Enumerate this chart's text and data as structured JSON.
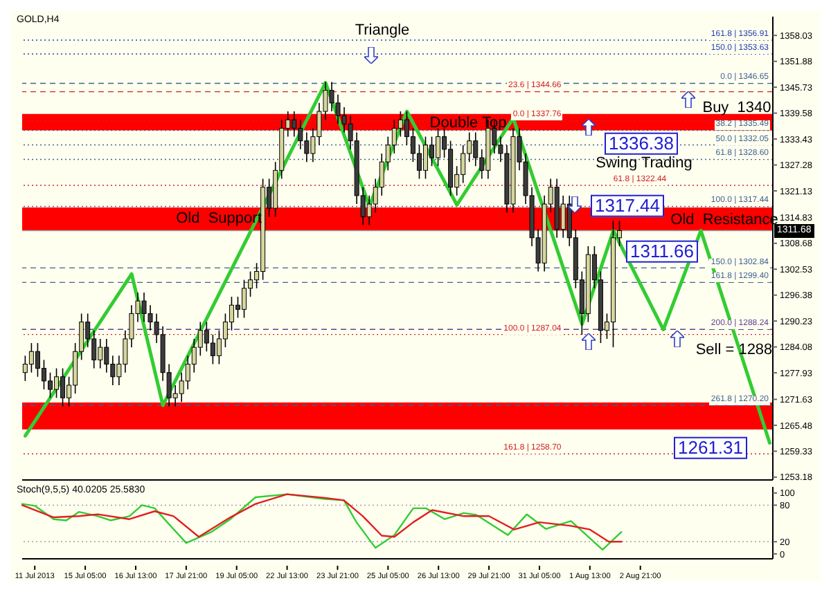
{
  "chart_data": [
    {
      "type": "candlestick",
      "title": "GOLD,H4",
      "categories": [
        null,
        null,
        null,
        null,
        null,
        null,
        null,
        null,
        null,
        null,
        null,
        null,
        null,
        null,
        null,
        null,
        null,
        null,
        null,
        null,
        null,
        null,
        null,
        null,
        null,
        null,
        null,
        null,
        null,
        null,
        null,
        null,
        null,
        null,
        null,
        null,
        null,
        null,
        null,
        null,
        null,
        null,
        null,
        null,
        null,
        null,
        null,
        null,
        null,
        null,
        null,
        null,
        null,
        null,
        null,
        null,
        null,
        null,
        null,
        null,
        null,
        null,
        null,
        null,
        null,
        null,
        null,
        null,
        null,
        null,
        null,
        null,
        null,
        null,
        null,
        null,
        null,
        null,
        null,
        null,
        null,
        null,
        null,
        null,
        null,
        null,
        null,
        null,
        null,
        null,
        null,
        null,
        null,
        null,
        null,
        null,
        null,
        null,
        null,
        null,
        null,
        null,
        null,
        null,
        null,
        null,
        null,
        null,
        null,
        null,
        null,
        null,
        null,
        null,
        null,
        null,
        null,
        null,
        null,
        null
      ],
      "ohlc": [
        [
          1278,
          1282,
          1276,
          1280
        ],
        [
          1280,
          1285,
          1278,
          1283
        ],
        [
          1283,
          1285,
          1277,
          1279
        ],
        [
          1279,
          1281,
          1274,
          1276
        ],
        [
          1276,
          1278,
          1272,
          1274
        ],
        [
          1274,
          1279,
          1272,
          1277
        ],
        [
          1277,
          1279,
          1270,
          1272
        ],
        [
          1272,
          1277,
          1270,
          1275
        ],
        [
          1275,
          1285,
          1273,
          1283
        ],
        [
          1283,
          1292,
          1281,
          1290
        ],
        [
          1290,
          1292,
          1284,
          1286
        ],
        [
          1286,
          1288,
          1279,
          1281
        ],
        [
          1281,
          1286,
          1279,
          1284
        ],
        [
          1284,
          1286,
          1278,
          1280
        ],
        [
          1280,
          1282,
          1275,
          1277
        ],
        [
          1277,
          1282,
          1275,
          1280
        ],
        [
          1280,
          1288,
          1278,
          1286
        ],
        [
          1286,
          1294,
          1284,
          1292
        ],
        [
          1292,
          1297,
          1290,
          1295
        ],
        [
          1295,
          1297,
          1290,
          1292
        ],
        [
          1292,
          1294,
          1288,
          1290
        ],
        [
          1290,
          1292,
          1285,
          1287
        ],
        [
          1287,
          1289,
          1276,
          1278
        ],
        [
          1278,
          1280,
          1270,
          1272
        ],
        [
          1272,
          1275,
          1270,
          1273
        ],
        [
          1273,
          1278,
          1271,
          1276
        ],
        [
          1276,
          1282,
          1274,
          1280
        ],
        [
          1280,
          1286,
          1278,
          1284
        ],
        [
          1284,
          1290,
          1282,
          1288
        ],
        [
          1288,
          1290,
          1283,
          1285
        ],
        [
          1285,
          1287,
          1280,
          1282
        ],
        [
          1282,
          1288,
          1280,
          1286
        ],
        [
          1286,
          1292,
          1284,
          1290
        ],
        [
          1290,
          1296,
          1288,
          1294
        ],
        [
          1294,
          1296,
          1291,
          1293
        ],
        [
          1293,
          1300,
          1291,
          1298
        ],
        [
          1298,
          1302,
          1296,
          1300
        ],
        [
          1300,
          1304,
          1298,
          1302
        ],
        [
          1302,
          1324,
          1300,
          1322
        ],
        [
          1322,
          1324,
          1315,
          1317
        ],
        [
          1317,
          1328,
          1315,
          1326
        ],
        [
          1326,
          1338,
          1324,
          1336
        ],
        [
          1336,
          1340,
          1334,
          1338
        ],
        [
          1338,
          1340,
          1334,
          1336
        ],
        [
          1336,
          1338,
          1331,
          1333
        ],
        [
          1333,
          1335,
          1328,
          1330
        ],
        [
          1330,
          1336,
          1328,
          1334
        ],
        [
          1334,
          1342,
          1332,
          1340
        ],
        [
          1340,
          1347,
          1338,
          1345
        ],
        [
          1345,
          1347,
          1340,
          1342
        ],
        [
          1342,
          1344,
          1337,
          1339
        ],
        [
          1339,
          1341,
          1335,
          1337
        ],
        [
          1337,
          1339,
          1331,
          1333
        ],
        [
          1333,
          1335,
          1318,
          1320
        ],
        [
          1320,
          1322,
          1313,
          1315
        ],
        [
          1315,
          1320,
          1313,
          1318
        ],
        [
          1318,
          1324,
          1316,
          1322
        ],
        [
          1322,
          1330,
          1320,
          1328
        ],
        [
          1328,
          1334,
          1326,
          1332
        ],
        [
          1332,
          1338,
          1330,
          1336
        ],
        [
          1336,
          1340,
          1334,
          1338
        ],
        [
          1338,
          1340,
          1332,
          1334
        ],
        [
          1334,
          1336,
          1328,
          1330
        ],
        [
          1330,
          1332,
          1324,
          1326
        ],
        [
          1326,
          1334,
          1324,
          1332
        ],
        [
          1332,
          1334,
          1327,
          1329
        ],
        [
          1329,
          1336,
          1327,
          1334
        ],
        [
          1334,
          1336,
          1329,
          1331
        ],
        [
          1331,
          1333,
          1320,
          1322
        ],
        [
          1322,
          1327,
          1320,
          1325
        ],
        [
          1325,
          1332,
          1323,
          1330
        ],
        [
          1330,
          1335,
          1328,
          1333
        ],
        [
          1333,
          1335,
          1327,
          1329
        ],
        [
          1329,
          1331,
          1324,
          1326
        ],
        [
          1326,
          1338,
          1324,
          1336
        ],
        [
          1336,
          1338,
          1330,
          1332
        ],
        [
          1332,
          1334,
          1328,
          1330
        ],
        [
          1330,
          1332,
          1316,
          1318
        ],
        [
          1318,
          1336,
          1316,
          1334
        ],
        [
          1334,
          1336,
          1326,
          1328
        ],
        [
          1328,
          1330,
          1318,
          1320
        ],
        [
          1320,
          1322,
          1308,
          1310
        ],
        [
          1310,
          1312,
          1302,
          1304
        ],
        [
          1304,
          1320,
          1302,
          1318
        ],
        [
          1318,
          1324,
          1316,
          1322
        ],
        [
          1322,
          1324,
          1310,
          1312
        ],
        [
          1312,
          1320,
          1310,
          1318
        ],
        [
          1318,
          1320,
          1308,
          1310
        ],
        [
          1310,
          1312,
          1298,
          1300
        ],
        [
          1300,
          1302,
          1287,
          1292
        ],
        [
          1292,
          1308,
          1290,
          1306
        ],
        [
          1306,
          1308,
          1298,
          1300
        ],
        [
          1300,
          1302,
          1285,
          1288
        ],
        [
          1288,
          1292,
          1286,
          1290
        ],
        [
          1290,
          1314,
          1284,
          1310
        ],
        [
          1310,
          1314,
          1308,
          1311.7
        ],
        null,
        null,
        null,
        null,
        null,
        null,
        null,
        null,
        null,
        null,
        null,
        null,
        null,
        null,
        null,
        null,
        null,
        null,
        null,
        null,
        null,
        null,
        null,
        null
      ],
      "series": [
        {
          "type": "line",
          "color": "#33cc33",
          "values": [
            1263,
            null,
            null,
            null,
            null,
            null,
            null,
            null,
            null,
            null,
            null,
            null,
            null,
            null,
            null,
            null,
            null,
            1301.4,
            null,
            null,
            null,
            null,
            1270.2,
            null,
            null,
            null,
            null,
            null,
            null,
            null,
            null,
            null,
            null,
            null,
            null,
            null,
            null,
            null,
            null,
            null,
            null,
            null,
            null,
            null,
            null,
            null,
            null,
            null,
            1346.8,
            null,
            null,
            null,
            null,
            null,
            null,
            1317.5,
            null,
            null,
            null,
            null,
            null,
            1340,
            null,
            null,
            null,
            null,
            null,
            null,
            null,
            1317.8,
            null,
            null,
            null,
            null,
            null,
            null,
            null,
            null,
            1338.4,
            null,
            null,
            null,
            null,
            null,
            null,
            null,
            null,
            null,
            null,
            1289.5,
            null,
            null,
            null,
            null,
            1311.7,
            null,
            null,
            null,
            null,
            null,
            null,
            null,
            1288.2,
            null,
            null,
            null,
            null,
            null,
            1311.7,
            null,
            null,
            null,
            null,
            null,
            null,
            null,
            null,
            null,
            null,
            1261.3
          ]
        }
      ],
      "tick_labels": "y",
      "ylim": [
        1252.5,
        1362.5
      ],
      "yticks": [
        1253.18,
        1259.33,
        1265.48,
        1271.63,
        1277.93,
        1284.08,
        1290.23,
        1296.38,
        1302.53,
        1308.68,
        1314.83,
        1321.13,
        1327.28,
        1333.43,
        1339.58,
        1345.73,
        1351.88,
        1358.03
      ],
      "bands": [
        {
          "axis": "y",
          "from": 1335.5,
          "to": 1339.4,
          "color": "#ff0000"
        },
        {
          "axis": "y",
          "from": 1311.7,
          "to": 1317.2,
          "color": "#ff0000"
        },
        {
          "axis": "y",
          "from": 1264.5,
          "to": 1270.9,
          "color": "#ff0000"
        }
      ],
      "ref_lines": [
        {
          "axis": "y",
          "value": 1311.68,
          "label": "1311.68",
          "color": "#a0a0a0",
          "line_style": "solid"
        },
        {
          "axis": "y",
          "value": 1356.91,
          "label": "161.8 | 1356.91",
          "color": "#2040b0",
          "line_style": "dotted"
        },
        {
          "axis": "y",
          "value": 1353.63,
          "label": "150.0 | 1353.63",
          "color": "#2040b0",
          "line_style": "dotted"
        },
        {
          "axis": "y",
          "value": 1346.65,
          "label": "0.0 | 1346.65",
          "color": "#406090",
          "line_style": "dashed"
        },
        {
          "axis": "y",
          "value": 1335.49,
          "label": "38.2 | 1335.49",
          "color": "#406090",
          "line_style": "dotted"
        },
        {
          "axis": "y",
          "value": 1332.05,
          "label": "50.0 | 1332.05",
          "color": "#406090",
          "line_style": "dotted"
        },
        {
          "axis": "y",
          "value": 1328.6,
          "label": "61.8 | 1328.60",
          "color": "#406090",
          "line_style": "dotted"
        },
        {
          "axis": "y",
          "value": 1317.44,
          "label": "100.0 | 1317.44",
          "color": "#406090",
          "line_style": "dotted"
        },
        {
          "axis": "y",
          "value": 1302.84,
          "label": "150.0 | 1302.84",
          "color": "#406090",
          "line_style": "dashed"
        },
        {
          "axis": "y",
          "value": 1299.4,
          "label": "161.8 | 1299.40",
          "color": "#406090",
          "line_style": "dashed"
        },
        {
          "axis": "y",
          "value": 1288.24,
          "label": "200.0 | 1288.24",
          "color": "#604090",
          "line_style": "dashed"
        },
        {
          "axis": "y",
          "value": 1270.2,
          "label": "261.8 | 1270.20",
          "color": "#406090",
          "line_style": "dashed"
        },
        {
          "axis": "y",
          "value": 1344.66,
          "label": "23.6 | 1344.66",
          "color": "#d02020",
          "line_style": "dashed"
        },
        {
          "axis": "y",
          "value": 1337.76,
          "label": "0.0 | 1337.76",
          "color": "#d02020",
          "line_style": "dotted"
        },
        {
          "axis": "y",
          "value": 1322.44,
          "label": "61.8 | 1322.44",
          "color": "#d02020",
          "line_style": "dotted"
        },
        {
          "axis": "y",
          "value": 1287.04,
          "label": "100.0 | 1287.04",
          "color": "#d02020",
          "line_style": "dotted"
        },
        {
          "axis": "y",
          "value": 1258.7,
          "label": "161.8 | 1258.70",
          "color": "#d02020",
          "line_style": "dotted"
        }
      ],
      "annotations": [
        "Triangle",
        {
          "text": "Double Top",
          "y": 1337.1
        },
        "Old  Support",
        "Swing Trading",
        "Old  Resistance",
        "Buy  1340",
        "1336.38",
        "1317.44",
        "1311.66",
        "Sell = 1288",
        "1261.31"
      ]
    },
    {
      "type": "line",
      "title": "Stoch(9,5,5) 40.0205 25.5830",
      "categories": [
        null,
        null,
        "11 Jul 2013",
        null,
        null,
        null,
        null,
        null,
        null,
        null,
        "15 Jul 05:00",
        null,
        null,
        null,
        null,
        null,
        null,
        null,
        "16 Jul 13:00",
        null,
        null,
        null,
        null,
        null,
        null,
        null,
        "17 Jul 21:00",
        null,
        null,
        null,
        null,
        null,
        null,
        null,
        "19 Jul 05:00",
        null,
        null,
        null,
        null,
        null,
        null,
        null,
        "22 Jul 13:00",
        null,
        null,
        null,
        null,
        null,
        null,
        null,
        "23 Jul 21:00",
        null,
        null,
        null,
        null,
        null,
        null,
        null,
        "25 Jul 05:00",
        null,
        null,
        null,
        null,
        null,
        null,
        null,
        "26 Jul 13:00",
        null,
        null,
        null,
        null,
        null,
        null,
        null,
        "29 Jul 21:00",
        null,
        null,
        null,
        null,
        null,
        null,
        null,
        "31 Jul 05:00",
        null,
        null,
        null,
        null,
        null,
        null,
        null,
        "1 Aug 13:00",
        null,
        null,
        null,
        null,
        null,
        null,
        null,
        "2 Aug 21:00",
        null,
        null,
        null,
        null,
        null,
        null,
        null,
        null,
        null,
        null,
        null,
        null,
        null,
        null,
        null,
        null,
        null,
        null,
        null,
        null,
        null
      ],
      "series": [
        {
          "color": "#33cc33",
          "values": [
            82,
            null,
            79,
            null,
            null,
            57,
            null,
            55,
            null,
            69,
            null,
            null,
            62,
            null,
            55,
            null,
            null,
            62,
            null,
            80,
            null,
            75,
            null,
            52,
            null,
            null,
            18,
            null,
            null,
            null,
            36,
            null,
            null,
            57,
            null,
            null,
            null,
            93,
            null,
            null,
            null,
            null,
            98,
            null,
            null,
            null,
            null,
            null,
            90,
            null,
            null,
            88,
            null,
            52,
            null,
            null,
            10,
            null,
            null,
            31,
            null,
            null,
            75,
            null,
            75,
            null,
            null,
            57,
            null,
            null,
            67,
            null,
            64,
            null,
            null,
            null,
            null,
            31,
            null,
            null,
            65,
            null,
            null,
            41,
            null,
            null,
            null,
            54,
            null,
            null,
            null,
            null,
            7,
            null,
            null,
            36,
            null,
            null,
            null,
            null,
            null,
            null,
            null,
            null,
            null,
            null,
            null,
            null,
            null,
            null,
            null,
            null,
            null,
            null,
            null,
            null,
            null,
            null,
            null,
            null
          ]
        },
        {
          "color": "#e02020",
          "values": [
            80,
            null,
            null,
            null,
            null,
            60,
            null,
            null,
            null,
            62,
            null,
            null,
            65,
            null,
            null,
            null,
            null,
            57,
            null,
            null,
            null,
            70,
            null,
            null,
            62,
            null,
            null,
            null,
            28,
            null,
            null,
            null,
            null,
            60,
            null,
            null,
            null,
            82,
            null,
            null,
            null,
            null,
            98,
            null,
            null,
            null,
            null,
            null,
            92,
            null,
            null,
            88,
            null,
            null,
            62,
            null,
            null,
            30,
            null,
            28,
            null,
            null,
            52,
            null,
            null,
            72,
            null,
            null,
            null,
            null,
            62,
            null,
            null,
            null,
            62,
            null,
            null,
            null,
            40,
            null,
            null,
            null,
            52,
            null,
            null,
            null,
            null,
            46,
            null,
            null,
            40,
            null,
            null,
            20,
            null,
            20,
            null,
            null,
            null,
            null,
            null,
            null,
            null,
            null,
            null,
            null,
            null,
            null,
            null,
            null,
            null,
            null,
            null,
            null,
            null,
            null,
            null,
            null,
            null,
            null
          ]
        }
      ],
      "ylim": [
        -8,
        110
      ],
      "yticks": [
        0,
        20,
        80,
        100
      ],
      "ref_lines": [
        {
          "axis": "y",
          "value": 80,
          "color": "#a0a0a0",
          "line_style": "dotted"
        },
        {
          "axis": "y",
          "value": 20,
          "color": "#a0a0a0",
          "line_style": "dotted"
        }
      ]
    }
  ]
}
